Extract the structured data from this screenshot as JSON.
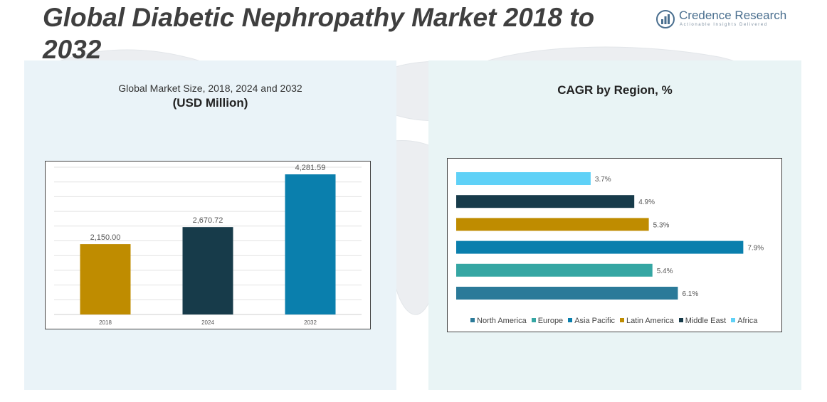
{
  "page": {
    "title": "Global Diabetic Nephropathy Market 2018 to 2032"
  },
  "brand": {
    "name": "Credence Research",
    "tagline": "Actionable Insights Delivered",
    "icon": "credence-logo-icon",
    "color": "#4a6f8f"
  },
  "left_panel": {
    "subtitle": "Global Market Size, 2018, 2024 and 2032",
    "unit": "(USD Million)"
  },
  "right_panel": {
    "title": "CAGR by Region, %"
  },
  "chart_data": [
    {
      "type": "bar",
      "title": "Global Market Size, 2018, 2024 and 2032",
      "ylabel": "(USD Million)",
      "categories": [
        "2018",
        "2024",
        "2032"
      ],
      "values": [
        2150.0,
        2670.72,
        4281.59
      ],
      "value_labels": [
        "2,150.00",
        "2,670.72",
        "4,281.59"
      ],
      "colors": [
        "#bf8c00",
        "#173b4a",
        "#0a7fad"
      ],
      "ylim": [
        0,
        4500
      ],
      "grid": true,
      "gridlines": 10
    },
    {
      "type": "bar",
      "orientation": "horizontal",
      "title": "CAGR by Region, %",
      "categories": [
        "North America",
        "Europe",
        "Asia Pacific",
        "Latin America",
        "Middle East",
        "Africa"
      ],
      "values": [
        6.1,
        5.4,
        7.9,
        5.3,
        4.9,
        3.7
      ],
      "value_labels": [
        "6.1%",
        "5.4%",
        "7.9%",
        "5.3%",
        "4.9%",
        "3.7%"
      ],
      "colors": [
        "#2b7a99",
        "#35a6a3",
        "#0a7fad",
        "#bf8c00",
        "#173b4a",
        "#5fd1f7"
      ],
      "xlim": [
        0,
        8.5
      ],
      "grid": false,
      "legend": "bottom"
    }
  ]
}
